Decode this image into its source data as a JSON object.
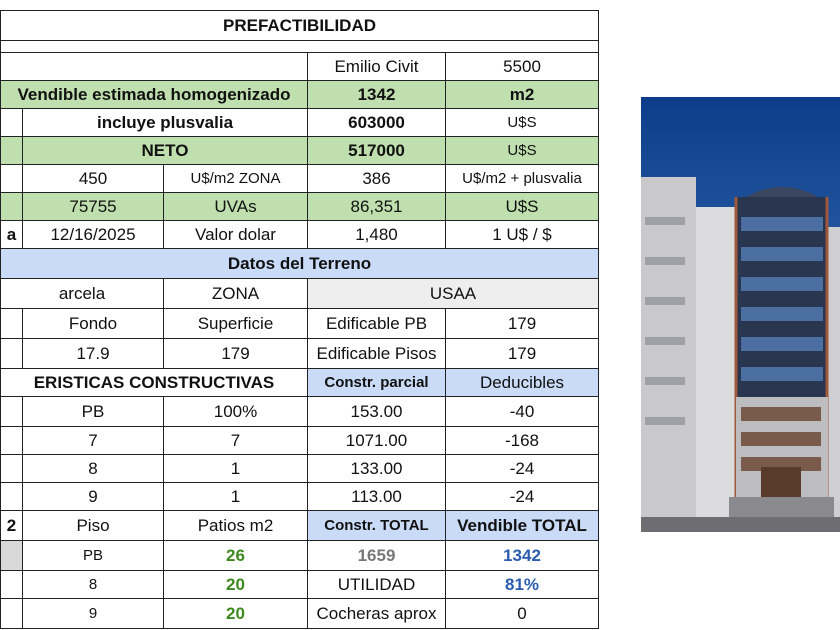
{
  "title": "PREFACTIBILIDAD",
  "rows": [
    [
      "Emilio Civit",
      "5500"
    ],
    [
      "Vendible estimada homogenizado",
      "1342",
      "m2"
    ],
    [
      "incluye plusvalia",
      "603000",
      "U$S"
    ],
    [
      "NETO",
      "517000",
      "U$S"
    ],
    [
      "450",
      "U$/m2 ZONA",
      "386",
      "U$/m2 + plusvalia"
    ],
    [
      "75755",
      "UVAs",
      "86,351",
      "U$S"
    ],
    [
      "a",
      "12/16/2025",
      "Valor dolar",
      "1,480",
      "1 U$ / $"
    ],
    [
      "Datos del Terreno"
    ],
    [
      "arcela",
      "ZONA",
      "USAA"
    ],
    [
      "Fondo",
      "Superficie",
      "Edificable PB",
      "179"
    ],
    [
      "17.9",
      "179",
      "Edificable Pisos",
      "179"
    ],
    [
      "ERISTICAS CONSTRUCTIVAS",
      "Constr. parcial",
      "Deducibles"
    ],
    [
      "PB",
      "100%",
      "153.00",
      "-40"
    ],
    [
      "7",
      "7",
      "1071.00",
      "-168"
    ],
    [
      "8",
      "1",
      "133.00",
      "-24"
    ],
    [
      "9",
      "1",
      "113.00",
      "-24"
    ],
    [
      "2",
      "Piso",
      "Patios m2",
      "Constr. TOTAL",
      "Vendible TOTAL"
    ],
    [
      "PB",
      "26",
      "1659",
      "1342"
    ],
    [
      "8",
      "20",
      "UTILIDAD",
      "81%"
    ],
    [
      "9",
      "20",
      "Cocheras aprox",
      "0"
    ]
  ]
}
